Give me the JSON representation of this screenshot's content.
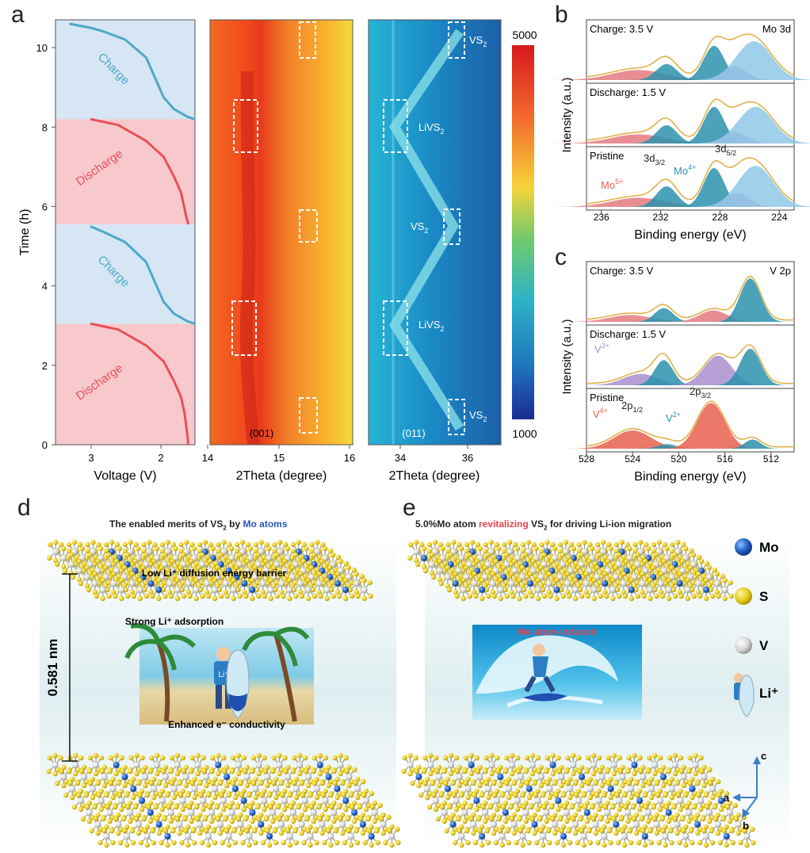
{
  "panel_labels": {
    "a": "a",
    "b": "b",
    "c": "c",
    "d": "d",
    "e": "e"
  },
  "panel_a": {
    "ylabel": "Time (h)",
    "yticks": [
      "0",
      "2",
      "4",
      "6",
      "8",
      "10"
    ],
    "voltage": {
      "xlabel": "Voltage (V)",
      "xticks": [
        "3",
        "2"
      ],
      "segments": [
        {
          "label": "Discharge",
          "color": "#e8505a",
          "bg": "#f7c9cc"
        },
        {
          "label": "Charge",
          "color": "#4fa8c8",
          "bg": "#d6e6f4"
        },
        {
          "label": "Discharge",
          "color": "#e8505a",
          "bg": "#f7c9cc"
        },
        {
          "label": "Charge",
          "color": "#4fa8c8",
          "bg": "#d6e6f4"
        }
      ]
    },
    "map1": {
      "xlabel": "2Theta (degree)",
      "xticks": [
        "14",
        "15",
        "16"
      ],
      "peak": "(001)"
    },
    "map2": {
      "xlabel": "2Theta (degree)",
      "xticks": [
        "34",
        "36"
      ],
      "peak": "(011)",
      "annotations": [
        "VS2",
        "LiVS2",
        "VS2",
        "LiVS2",
        "VS2"
      ]
    },
    "colorbar": {
      "max": "5000",
      "min": "1000"
    }
  },
  "chart_data": [
    {
      "type": "line",
      "xlabel": "Voltage (V)",
      "ylabel": "Time (h)",
      "xlim": [
        3.5,
        1.5
      ],
      "ylim": [
        0,
        10.7
      ],
      "series": [
        {
          "name": "Discharge",
          "x": [
            3.0,
            2.6,
            2.2,
            1.95,
            1.8,
            1.7,
            1.65,
            1.62,
            1.6,
            1.6
          ],
          "y": [
            3.05,
            2.9,
            2.5,
            2.1,
            1.6,
            1.2,
            0.8,
            0.4,
            0.1,
            0.0
          ]
        },
        {
          "name": "Charge",
          "x": [
            1.5,
            1.6,
            1.8,
            1.95,
            2.05,
            2.2,
            2.5,
            2.8,
            3.0
          ],
          "y": [
            3.05,
            3.1,
            3.3,
            3.6,
            4.0,
            4.6,
            5.1,
            5.35,
            5.5
          ]
        },
        {
          "name": "Discharge",
          "x": [
            3.0,
            2.6,
            2.2,
            1.95,
            1.8,
            1.7,
            1.65,
            1.62,
            1.6,
            1.6
          ],
          "y": [
            8.2,
            8.05,
            7.65,
            7.25,
            6.75,
            6.35,
            5.95,
            5.7,
            5.6,
            5.55
          ]
        },
        {
          "name": "Charge",
          "x": [
            1.5,
            1.6,
            1.8,
            1.95,
            2.05,
            2.2,
            2.5,
            2.8,
            3.0,
            3.3
          ],
          "y": [
            8.2,
            8.25,
            8.45,
            8.75,
            9.15,
            9.75,
            10.2,
            10.4,
            10.5,
            10.6
          ]
        }
      ]
    },
    {
      "type": "area",
      "title": "Mo 3d",
      "xlabel": "Binding energy (eV)",
      "ylabel": "Intensity (a.u.)",
      "xticks": [
        "236",
        "232",
        "228",
        "224"
      ],
      "xlim": [
        237,
        223
      ],
      "spectra": [
        {
          "label": "Charge: 3.5 V",
          "peaks": [
            {
              "center": 233.5,
              "height": 0.22,
              "width": 1.8,
              "color": "#e47a80"
            },
            {
              "center": 231.6,
              "height": 0.35,
              "width": 0.7,
              "color": "#2b92ad"
            },
            {
              "center": 228.4,
              "height": 0.75,
              "width": 0.7,
              "color": "#2b92ad"
            },
            {
              "center": 227.0,
              "height": 0.3,
              "width": 0.8,
              "color": "#a98fcf"
            },
            {
              "center": 225.7,
              "height": 0.85,
              "width": 1.2,
              "color": "#8fc8e6"
            }
          ]
        },
        {
          "label": "Discharge: 1.5 V",
          "peaks": [
            {
              "center": 233.5,
              "height": 0.2,
              "width": 1.8,
              "color": "#e47a80"
            },
            {
              "center": 231.6,
              "height": 0.4,
              "width": 0.7,
              "color": "#2b92ad"
            },
            {
              "center": 228.4,
              "height": 0.8,
              "width": 0.7,
              "color": "#2b92ad"
            },
            {
              "center": 227.0,
              "height": 0.25,
              "width": 0.8,
              "color": "#a98fcf"
            },
            {
              "center": 225.6,
              "height": 0.8,
              "width": 1.2,
              "color": "#8fc8e6"
            }
          ]
        },
        {
          "label": "Pristine",
          "peaks": [
            {
              "center": 233.5,
              "height": 0.2,
              "width": 1.8,
              "color": "#e47a80"
            },
            {
              "center": 231.6,
              "height": 0.45,
              "width": 0.7,
              "color": "#2b92ad"
            },
            {
              "center": 228.4,
              "height": 0.85,
              "width": 0.7,
              "color": "#2b92ad"
            },
            {
              "center": 226.8,
              "height": 0.3,
              "width": 0.8,
              "color": "#a98fcf"
            },
            {
              "center": 225.6,
              "height": 0.9,
              "width": 1.2,
              "color": "#8fc8e6"
            }
          ]
        }
      ]
    },
    {
      "type": "area",
      "title": "V 2p",
      "xlabel": "Binding energy (eV)",
      "ylabel": "Intensity (a.u.)",
      "xticks": [
        "528",
        "524",
        "520",
        "516",
        "512"
      ],
      "xlim": [
        528,
        510
      ],
      "spectra": [
        {
          "label": "Charge: 3.5 V",
          "peaks": [
            {
              "center": 524.2,
              "height": 0.15,
              "width": 1.8,
              "color": "#e47a80"
            },
            {
              "center": 521.3,
              "height": 0.3,
              "width": 0.8,
              "color": "#2b92ad"
            },
            {
              "center": 517.0,
              "height": 0.25,
              "width": 1.2,
              "color": "#e47a80"
            },
            {
              "center": 513.8,
              "height": 0.95,
              "width": 0.9,
              "color": "#2b92ad"
            }
          ]
        },
        {
          "label": "Discharge: 1.5 V",
          "peaks": [
            {
              "center": 523.3,
              "height": 0.25,
              "width": 1.5,
              "color": "#a98fcf"
            },
            {
              "center": 521.3,
              "height": 0.55,
              "width": 0.8,
              "color": "#2b92ad"
            },
            {
              "center": 516.6,
              "height": 0.65,
              "width": 1.2,
              "color": "#a98fcf"
            },
            {
              "center": 513.8,
              "height": 0.8,
              "width": 0.9,
              "color": "#2b92ad"
            }
          ]
        },
        {
          "label": "Pristine",
          "peaks": [
            {
              "center": 524.0,
              "height": 0.4,
              "width": 1.6,
              "color": "#e8604f"
            },
            {
              "center": 521.0,
              "height": 0.1,
              "width": 0.8,
              "color": "#2b92ad"
            },
            {
              "center": 517.2,
              "height": 1.0,
              "width": 1.2,
              "color": "#e8604f"
            },
            {
              "center": 513.6,
              "height": 0.2,
              "width": 0.7,
              "color": "#2b92ad"
            }
          ]
        }
      ]
    }
  ],
  "panel_b": {
    "labels": {
      "mo5": "Mo5+",
      "d32": "3d3/2",
      "mo4": "Mo4+",
      "d52": "3d5/2"
    }
  },
  "panel_c": {
    "labels": {
      "v3": "V3+",
      "v4": "V4+",
      "p12": "2p1/2",
      "v2": "V2+",
      "p32": "2p3/2"
    }
  },
  "panel_d": {
    "title_pre": "The enabled merits of VS",
    "title_sub": "2",
    "title_mid": " by ",
    "title_post": "Mo atoms",
    "barrier": "Low Li⁺ diffusion energy barrier",
    "adsorption": "Strong Li⁺ adsorption",
    "conductivity": "Enhanced e⁻ conductivity",
    "spacing": "0.581 nm",
    "surfer_tag": "Li⁺"
  },
  "panel_e": {
    "title_pre": "5.0%Mo atom ",
    "title_red": "revitalizing",
    "title_mid": " VS",
    "title_sub": "2",
    "title_post": " for driving Li-ion migration",
    "wave_label": "Mo atom-induced",
    "legend": [
      "Mo",
      "S",
      "V",
      "Li⁺"
    ],
    "axes": [
      "c",
      "a",
      "b"
    ]
  }
}
